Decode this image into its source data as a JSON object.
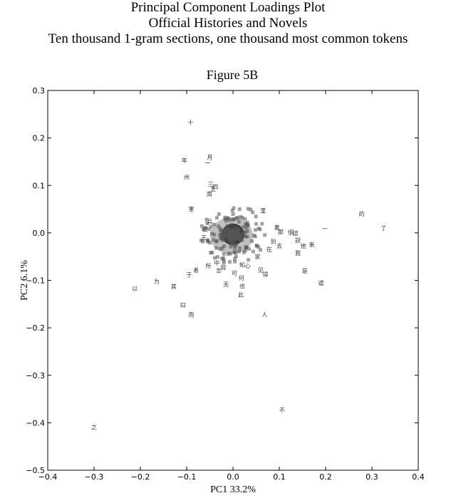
{
  "header": {
    "line1": "Principal Component Loadings Plot",
    "line2": "Official Histories and Novels",
    "line3": "Ten thousand 1-gram sections, one thousand most common tokens"
  },
  "chart_data": {
    "type": "scatter",
    "title": "Figure 5B",
    "xlabel": "PC1 33.2%",
    "ylabel": "PC2 6.1%",
    "xlim": [
      -0.4,
      0.4
    ],
    "ylim": [
      -0.5,
      0.3
    ],
    "xticks": [
      -0.4,
      -0.3,
      -0.2,
      -0.1,
      0.0,
      0.1,
      0.2,
      0.3,
      0.4
    ],
    "xtick_labels": [
      "−0.4",
      "−0.3",
      "−0.2",
      "−0.1",
      "0.0",
      "0.1",
      "0.2",
      "0.3",
      "0.4"
    ],
    "yticks": [
      0.3,
      0.2,
      0.1,
      0.0,
      -0.1,
      -0.2,
      -0.3,
      -0.4,
      -0.5
    ],
    "ytick_labels": [
      "0.3",
      "0.2",
      "0.1",
      "0.0",
      "−0.1",
      "−0.2",
      "−0.3",
      "−0.4",
      "−0.5"
    ],
    "grid": false,
    "dense_cluster": {
      "center": [
        0.0,
        -0.003
      ]
    },
    "points": [
      {
        "label": "十",
        "x": -0.092,
        "y": 0.233
      },
      {
        "label": "年",
        "x": -0.105,
        "y": 0.153
      },
      {
        "label": "月",
        "x": -0.05,
        "y": 0.16
      },
      {
        "label": "一",
        "x": -0.055,
        "y": 0.148
      },
      {
        "label": "州",
        "x": -0.1,
        "y": 0.118
      },
      {
        "label": "三",
        "x": -0.048,
        "y": 0.103
      },
      {
        "label": "四",
        "x": -0.038,
        "y": 0.097
      },
      {
        "label": "五",
        "x": -0.043,
        "y": 0.093
      },
      {
        "label": "南",
        "x": -0.051,
        "y": 0.082
      },
      {
        "label": "軍",
        "x": -0.09,
        "y": 0.05
      },
      {
        "label": "使",
        "x": -0.06,
        "y": 0.008
      },
      {
        "label": "兵",
        "x": -0.05,
        "y": 0.024
      },
      {
        "label": "王",
        "x": -0.063,
        "y": -0.01
      },
      {
        "label": "里",
        "x": 0.065,
        "y": 0.047
      },
      {
        "label": "着",
        "x": 0.095,
        "y": 0.011
      },
      {
        "label": "那",
        "x": 0.103,
        "y": 0.002
      },
      {
        "label": "個",
        "x": 0.125,
        "y": 0.001
      },
      {
        "label": "這",
        "x": 0.135,
        "y": 0.0
      },
      {
        "label": "說",
        "x": 0.14,
        "y": -0.015
      },
      {
        "label": "他",
        "x": 0.152,
        "y": -0.027
      },
      {
        "label": "来",
        "x": 0.17,
        "y": -0.025
      },
      {
        "label": "一",
        "x": 0.198,
        "y": 0.009
      },
      {
        "label": "的",
        "x": 0.278,
        "y": 0.04
      },
      {
        "label": "了",
        "x": 0.325,
        "y": 0.01
      },
      {
        "label": "到",
        "x": 0.087,
        "y": -0.018
      },
      {
        "label": "去",
        "x": 0.1,
        "y": -0.027
      },
      {
        "label": "在",
        "x": 0.078,
        "y": -0.035
      },
      {
        "label": "我",
        "x": 0.14,
        "y": -0.042
      },
      {
        "label": "家",
        "x": 0.053,
        "y": -0.05
      },
      {
        "label": "是",
        "x": 0.155,
        "y": -0.08
      },
      {
        "label": "道",
        "x": 0.19,
        "y": -0.105
      },
      {
        "label": "见",
        "x": 0.06,
        "y": -0.078
      },
      {
        "label": "得",
        "x": 0.07,
        "y": -0.087
      },
      {
        "label": "心",
        "x": 0.032,
        "y": -0.069
      },
      {
        "label": "知",
        "x": 0.02,
        "y": -0.067
      },
      {
        "label": "可",
        "x": 0.003,
        "y": -0.085
      },
      {
        "label": "與",
        "x": -0.021,
        "y": -0.073
      },
      {
        "label": "所",
        "x": -0.053,
        "y": -0.069
      },
      {
        "label": "言",
        "x": -0.031,
        "y": -0.079
      },
      {
        "label": "者",
        "x": -0.08,
        "y": -0.078
      },
      {
        "label": "于",
        "x": -0.095,
        "y": -0.088
      },
      {
        "label": "中",
        "x": -0.035,
        "y": -0.063
      },
      {
        "label": "无",
        "x": -0.015,
        "y": -0.108
      },
      {
        "label": "何",
        "x": 0.018,
        "y": -0.095
      },
      {
        "label": "也",
        "x": 0.02,
        "y": -0.112
      },
      {
        "label": "此",
        "x": 0.017,
        "y": -0.13
      },
      {
        "label": "人",
        "x": 0.068,
        "y": -0.172
      },
      {
        "label": "为",
        "x": -0.165,
        "y": -0.102
      },
      {
        "label": "以",
        "x": -0.212,
        "y": -0.117
      },
      {
        "label": "其",
        "x": -0.128,
        "y": -0.113
      },
      {
        "label": "曰",
        "x": -0.108,
        "y": -0.152
      },
      {
        "label": "而",
        "x": -0.09,
        "y": -0.172
      },
      {
        "label": "不",
        "x": 0.106,
        "y": -0.373
      },
      {
        "label": "之",
        "x": -0.3,
        "y": -0.409
      }
    ]
  }
}
